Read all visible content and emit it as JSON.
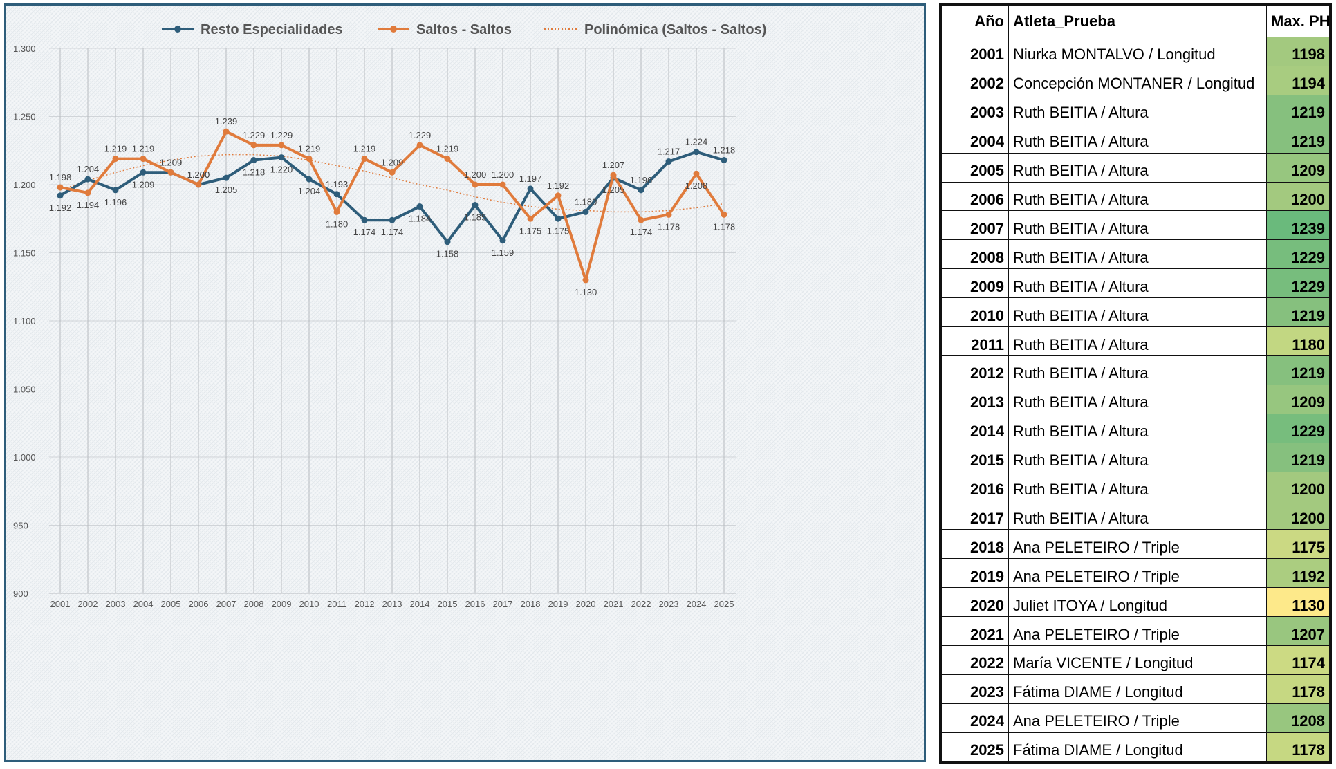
{
  "chart_data": {
    "type": "line",
    "categories": [
      "2001",
      "2002",
      "2003",
      "2004",
      "2005",
      "2006",
      "2007",
      "2008",
      "2009",
      "2010",
      "2011",
      "2012",
      "2013",
      "2014",
      "2015",
      "2016",
      "2017",
      "2018",
      "2019",
      "2020",
      "2021",
      "2022",
      "2023",
      "2024",
      "2025"
    ],
    "y_tick_labels": [
      "900",
      "950",
      "1.000",
      "1.050",
      "1.100",
      "1.150",
      "1.200",
      "1.250",
      "1.300"
    ],
    "ylim": [
      900,
      1300
    ],
    "y_tick_step": 50,
    "grid": true,
    "legend_position": "top",
    "series": [
      {
        "name": "Resto Especialidades",
        "color": "#2e5d7a",
        "values": [
          1192,
          1204,
          1196,
          1209,
          1209,
          1200,
          1205,
          1218,
          1220,
          1204,
          1193,
          1174,
          1174,
          1184,
          1158,
          1185,
          1159,
          1197,
          1175,
          1180,
          1205,
          1196,
          1217,
          1224,
          1218
        ],
        "labels": [
          "1.192",
          "1.204",
          "1.196",
          "1.209",
          "1.209",
          "1.200",
          "1.205",
          "1.218",
          "1.220",
          "1.204",
          "1.193",
          "1.174",
          "1.174",
          "1.184",
          "1.158",
          "1.185",
          "1.159",
          "1.197",
          "1.175",
          "1.180",
          "1.205",
          "1.196",
          "1.217",
          "1.224",
          "1.218"
        ]
      },
      {
        "name": "Saltos - Saltos",
        "color": "#e07b3c",
        "values": [
          1198,
          1194,
          1219,
          1219,
          1209,
          1200,
          1239,
          1229,
          1229,
          1219,
          1180,
          1219,
          1209,
          1229,
          1219,
          1200,
          1200,
          1175,
          1192,
          1130,
          1207,
          1174,
          1178,
          1208,
          1178
        ],
        "labels": [
          "1.198",
          "1.194",
          "1.219",
          "1.219",
          "1.209",
          "1.200",
          "1.239",
          "1.229",
          "1.229",
          "1.219",
          "1.180",
          "1.219",
          "1.209",
          "1.229",
          "1.219",
          "1.200",
          "1.200",
          "1.175",
          "1.192",
          "1.130",
          "1.207",
          "1.174",
          "1.178",
          "1.208",
          "1.178"
        ]
      }
    ],
    "trendline": {
      "name": "Polinómica (Saltos - Saltos)",
      "color": "#e07b3c",
      "style": "dotted",
      "values": [
        1196,
        1203,
        1209,
        1214,
        1218,
        1221,
        1222,
        1222,
        1221,
        1218,
        1214,
        1210,
        1205,
        1200,
        1196,
        1191,
        1187,
        1184,
        1182,
        1181,
        1180,
        1180,
        1181,
        1183,
        1186
      ]
    }
  },
  "table": {
    "headers": {
      "year": "Año",
      "athlete": "Atleta_Prueba",
      "ph": "Max. PH"
    },
    "rows": [
      {
        "year": "2001",
        "athlete": "Niurka MONTALVO / Longitud",
        "ph": "1198",
        "color": "#a3c97f"
      },
      {
        "year": "2002",
        "athlete": "Concepción MONTANER / Longitud",
        "ph": "1194",
        "color": "#a8cc80"
      },
      {
        "year": "2003",
        "athlete": "Ruth BEITIA / Altura",
        "ph": "1219",
        "color": "#86c07e"
      },
      {
        "year": "2004",
        "athlete": "Ruth BEITIA / Altura",
        "ph": "1219",
        "color": "#86c07e"
      },
      {
        "year": "2005",
        "athlete": "Ruth BEITIA / Altura",
        "ph": "1209",
        "color": "#97c67f"
      },
      {
        "year": "2006",
        "athlete": "Ruth BEITIA / Altura",
        "ph": "1200",
        "color": "#a3c97f"
      },
      {
        "year": "2007",
        "athlete": "Ruth BEITIA / Altura",
        "ph": "1239",
        "color": "#6aba7c"
      },
      {
        "year": "2008",
        "athlete": "Ruth BEITIA / Altura",
        "ph": "1229",
        "color": "#77bd7d"
      },
      {
        "year": "2009",
        "athlete": "Ruth BEITIA / Altura",
        "ph": "1229",
        "color": "#77bd7d"
      },
      {
        "year": "2010",
        "athlete": "Ruth BEITIA / Altura",
        "ph": "1219",
        "color": "#86c07e"
      },
      {
        "year": "2011",
        "athlete": "Ruth BEITIA / Altura",
        "ph": "1180",
        "color": "#c2d782"
      },
      {
        "year": "2012",
        "athlete": "Ruth BEITIA / Altura",
        "ph": "1219",
        "color": "#86c07e"
      },
      {
        "year": "2013",
        "athlete": "Ruth BEITIA / Altura",
        "ph": "1209",
        "color": "#97c67f"
      },
      {
        "year": "2014",
        "athlete": "Ruth BEITIA / Altura",
        "ph": "1229",
        "color": "#77bd7d"
      },
      {
        "year": "2015",
        "athlete": "Ruth BEITIA / Altura",
        "ph": "1219",
        "color": "#86c07e"
      },
      {
        "year": "2016",
        "athlete": "Ruth BEITIA / Altura",
        "ph": "1200",
        "color": "#a3c97f"
      },
      {
        "year": "2017",
        "athlete": "Ruth BEITIA / Altura",
        "ph": "1200",
        "color": "#a3c97f"
      },
      {
        "year": "2018",
        "athlete": "Ana PELETEIRO / Triple",
        "ph": "1175",
        "color": "#cbd983"
      },
      {
        "year": "2019",
        "athlete": "Ana PELETEIRO / Triple",
        "ph": "1192",
        "color": "#abcd80"
      },
      {
        "year": "2020",
        "athlete": "Juliet ITOYA / Longitud",
        "ph": "1130",
        "color": "#fde98a"
      },
      {
        "year": "2021",
        "athlete": "Ana PELETEIRO / Triple",
        "ph": "1207",
        "color": "#99c67f"
      },
      {
        "year": "2022",
        "athlete": "María VICENTE / Longitud",
        "ph": "1174",
        "color": "#ccda83"
      },
      {
        "year": "2023",
        "athlete": "Fátima DIAME / Longitud",
        "ph": "1178",
        "color": "#c6d882"
      },
      {
        "year": "2024",
        "athlete": "Ana PELETEIRO / Triple",
        "ph": "1208",
        "color": "#98c67f"
      },
      {
        "year": "2025",
        "athlete": "Fátima DIAME / Longitud",
        "ph": "1178",
        "color": "#c6d882"
      }
    ]
  }
}
